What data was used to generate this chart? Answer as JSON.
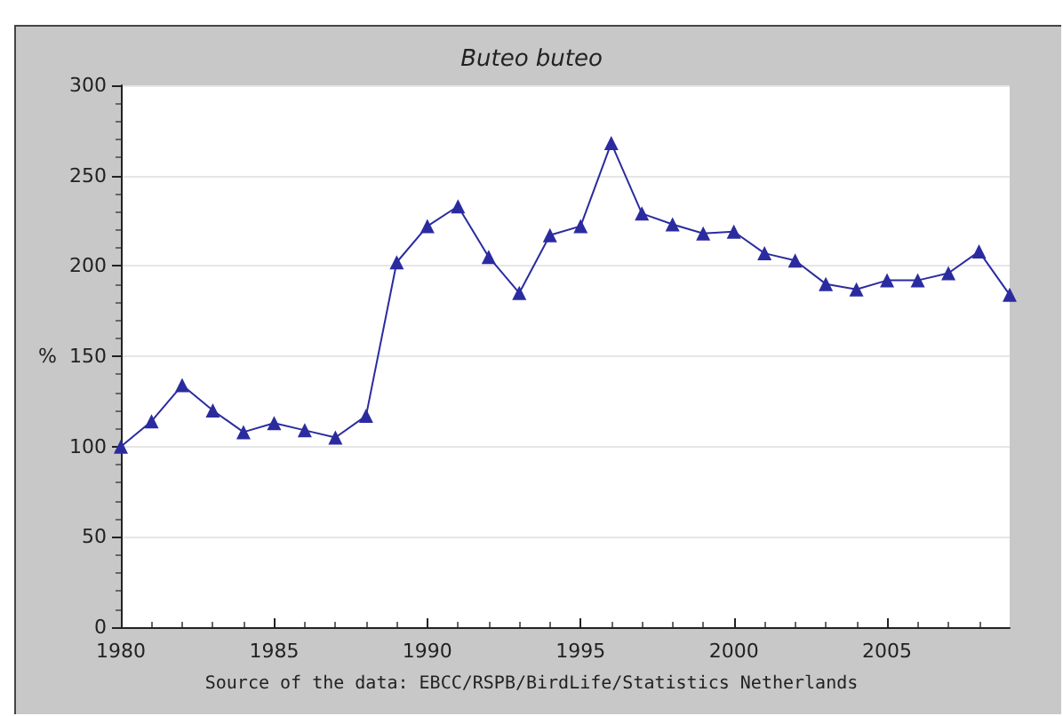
{
  "chart_data": {
    "type": "line",
    "title": "Buteo buteo",
    "ylabel": "%",
    "annotations": [
      "Source of the data: EBCC/RSPB/BirdLife/Statistics Netherlands"
    ],
    "x": [
      1980,
      1981,
      1982,
      1983,
      1984,
      1985,
      1986,
      1987,
      1988,
      1989,
      1990,
      1991,
      1992,
      1993,
      1994,
      1995,
      1996,
      1997,
      1998,
      1999,
      2000,
      2001,
      2002,
      2003,
      2004,
      2005,
      2006,
      2007,
      2008,
      2009
    ],
    "series": [
      {
        "color": "#2b2ba0",
        "values": [
          100,
          114,
          134,
          120,
          108,
          113,
          109,
          105,
          117,
          202,
          222,
          233,
          205,
          185,
          217,
          222,
          268,
          229,
          223,
          218,
          219,
          207,
          203,
          190,
          187,
          192,
          192,
          196,
          208,
          184
        ]
      }
    ],
    "xlim": [
      1980,
      2009
    ],
    "xticks": [
      1980,
      1985,
      1990,
      1995,
      2000,
      2005
    ],
    "ylim": [
      0,
      300
    ],
    "yticks": [
      0,
      50,
      100,
      150,
      200,
      250,
      300
    ],
    "grid": "y",
    "marker": "triangle",
    "line_style": "solid"
  }
}
